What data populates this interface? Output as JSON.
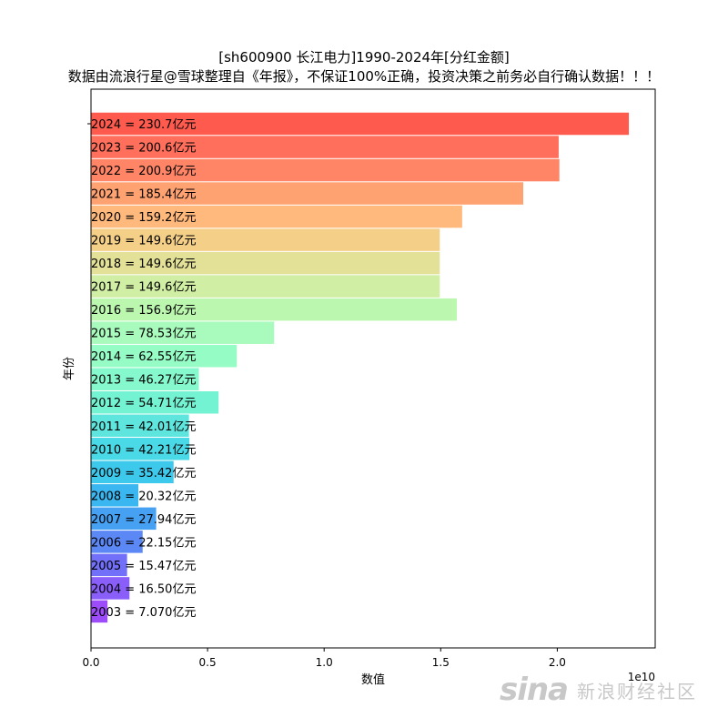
{
  "chart_data": {
    "type": "bar",
    "orientation": "horizontal",
    "title": "[sh600900 长江电力]1990-2024年[分红金额]",
    "subtitle": "数据由流浪行星@雪球整理自《年报》，不保证100%正确，投资决策之前务必自行确认数据！！！",
    "xlabel": "数值",
    "ylabel": "年份",
    "x_offset_label": "1e10",
    "xlim": [
      0,
      2.42
    ],
    "x_ticks": [
      "0.0",
      "0.5",
      "1.0",
      "1.5",
      "2.0"
    ],
    "x_tick_values": [
      0,
      0.5,
      1.0,
      1.5,
      2.0
    ],
    "grid": false,
    "bars": [
      {
        "year": "2024",
        "value": 2.307,
        "label": "2024 = 230.7亿元",
        "color": "#ff5a4e"
      },
      {
        "year": "2023",
        "value": 2.006,
        "label": "2023 = 200.6亿元",
        "color": "#ff6f5c"
      },
      {
        "year": "2022",
        "value": 2.009,
        "label": "2022 = 200.9亿元",
        "color": "#ff8566"
      },
      {
        "year": "2021",
        "value": 1.854,
        "label": "2021 = 185.4亿元",
        "color": "#ffa271"
      },
      {
        "year": "2020",
        "value": 1.592,
        "label": "2020 = 159.2亿元",
        "color": "#ffb97c"
      },
      {
        "year": "2019",
        "value": 1.496,
        "label": "2019 = 149.6亿元",
        "color": "#f4cf88"
      },
      {
        "year": "2018",
        "value": 1.496,
        "label": "2018 = 149.6亿元",
        "color": "#e3e198"
      },
      {
        "year": "2017",
        "value": 1.496,
        "label": "2017 = 149.6亿元",
        "color": "#d0eea4"
      },
      {
        "year": "2016",
        "value": 1.569,
        "label": "2016 = 156.9亿元",
        "color": "#bcf7b0"
      },
      {
        "year": "2015",
        "value": 0.7853,
        "label": "2015 = 78.53亿元",
        "color": "#a8fbbd"
      },
      {
        "year": "2014",
        "value": 0.6255,
        "label": "2014 = 62.55亿元",
        "color": "#95fcc6"
      },
      {
        "year": "2013",
        "value": 0.4627,
        "label": "2013 = 46.27亿元",
        "color": "#86f8cd"
      },
      {
        "year": "2012",
        "value": 0.5471,
        "label": "2012 = 54.71亿元",
        "color": "#74f3d3"
      },
      {
        "year": "2011",
        "value": 0.4201,
        "label": "2011 = 42.01亿元",
        "color": "#5ee6de"
      },
      {
        "year": "2010",
        "value": 0.4221,
        "label": "2010 = 42.21亿元",
        "color": "#4ad9e6"
      },
      {
        "year": "2009",
        "value": 0.3542,
        "label": "2009 = 35.42亿元",
        "color": "#3cc9ec"
      },
      {
        "year": "2008",
        "value": 0.2032,
        "label": "2008 = 20.32亿元",
        "color": "#3ab6f0"
      },
      {
        "year": "2007",
        "value": 0.2794,
        "label": "2007 = 27.94亿元",
        "color": "#46a1f3"
      },
      {
        "year": "2006",
        "value": 0.2215,
        "label": "2006 = 22.15亿元",
        "color": "#5c88f6"
      },
      {
        "year": "2005",
        "value": 0.1547,
        "label": "2005 = 15.47亿元",
        "color": "#7270f8"
      },
      {
        "year": "2004",
        "value": 0.165,
        "label": "2004 = 16.50亿元",
        "color": "#8a5ef9"
      },
      {
        "year": "2003",
        "value": 0.0707,
        "label": "2003 = 7.070亿元",
        "color": "#9c4cf9"
      }
    ]
  },
  "watermark": {
    "logo": "sina",
    "text": "新浪财经社区"
  }
}
